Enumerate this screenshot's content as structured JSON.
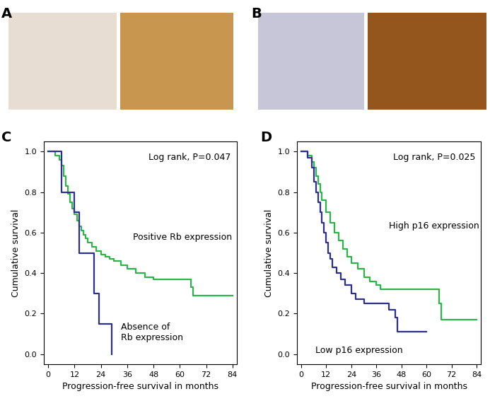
{
  "panel_labels": [
    "A",
    "B",
    "C",
    "D"
  ],
  "chart_data": [
    {
      "type": "step",
      "xlabel": "Progression-free survival in months",
      "ylabel": "Cumulative survival",
      "annotations": [
        "Log rank, P=0.047"
      ],
      "xlim": [
        -2,
        86
      ],
      "ylim": [
        -0.05,
        1.05
      ],
      "xticks": [
        0,
        12,
        24,
        36,
        48,
        60,
        72,
        84
      ],
      "yticks": [
        {
          "value": 0,
          "label": "0.0"
        },
        {
          "value": 0.2,
          "label": "0.2"
        },
        {
          "value": 0.4,
          "label": "0.4"
        },
        {
          "value": 0.6,
          "label": "0.6"
        },
        {
          "value": 0.8,
          "label": "0.8"
        },
        {
          "value": 1.0,
          "label": "1.0"
        }
      ],
      "series": [
        {
          "name": "Positive Rb expression",
          "color": "#2eb24a",
          "x": [
            0,
            3,
            5,
            6,
            7,
            8,
            9,
            10,
            11,
            12,
            13,
            14,
            15,
            16,
            17,
            18,
            20,
            22,
            24,
            26,
            28,
            30,
            33,
            36,
            40,
            44,
            48,
            54,
            60,
            65,
            66,
            84
          ],
          "values": [
            1.0,
            0.98,
            0.96,
            0.93,
            0.88,
            0.83,
            0.79,
            0.75,
            0.72,
            0.69,
            0.66,
            0.63,
            0.61,
            0.59,
            0.57,
            0.55,
            0.53,
            0.51,
            0.49,
            0.48,
            0.47,
            0.46,
            0.44,
            0.42,
            0.4,
            0.38,
            0.37,
            0.37,
            0.37,
            0.33,
            0.29,
            0.29
          ]
        },
        {
          "name": "Absence of\nRb expression",
          "color": "#2c2f8c",
          "x": [
            0,
            6,
            12,
            14,
            21,
            23,
            29
          ],
          "values": [
            1.0,
            0.8,
            0.7,
            0.5,
            0.3,
            0.15,
            0.0
          ]
        }
      ]
    },
    {
      "type": "step",
      "xlabel": "Progression-free survival in months",
      "ylabel": "Cumulative survival",
      "annotations": [
        "Log rank, P=0.025"
      ],
      "xlim": [
        -2,
        86
      ],
      "ylim": [
        -0.05,
        1.05
      ],
      "xticks": [
        0,
        12,
        24,
        36,
        48,
        60,
        72,
        84
      ],
      "yticks": [
        {
          "value": 0,
          "label": "0.0"
        },
        {
          "value": 0.2,
          "label": "0.2"
        },
        {
          "value": 0.4,
          "label": "0.4"
        },
        {
          "value": 0.6,
          "label": "0.6"
        },
        {
          "value": 0.8,
          "label": "0.8"
        },
        {
          "value": 1.0,
          "label": "1.0"
        }
      ],
      "series": [
        {
          "name": "High p16 expression",
          "color": "#2eb24a",
          "x": [
            0,
            3,
            5,
            6,
            7,
            8,
            9,
            10,
            12,
            14,
            16,
            18,
            20,
            22,
            24,
            27,
            30,
            33,
            36,
            38,
            48,
            60,
            65,
            66,
            67,
            84
          ],
          "values": [
            1.0,
            0.98,
            0.95,
            0.92,
            0.88,
            0.84,
            0.8,
            0.76,
            0.7,
            0.65,
            0.6,
            0.56,
            0.52,
            0.48,
            0.45,
            0.42,
            0.38,
            0.36,
            0.34,
            0.32,
            0.32,
            0.32,
            0.32,
            0.25,
            0.17,
            0.17
          ]
        },
        {
          "name": "Low p16 expression",
          "color": "#2c2f8c",
          "x": [
            0,
            3,
            5,
            6,
            7,
            8,
            9,
            10,
            11,
            12,
            13,
            14,
            15,
            17,
            19,
            21,
            24,
            26,
            30,
            40,
            42,
            45,
            46,
            60
          ],
          "values": [
            1.0,
            0.97,
            0.92,
            0.85,
            0.8,
            0.75,
            0.7,
            0.65,
            0.6,
            0.55,
            0.5,
            0.47,
            0.43,
            0.4,
            0.37,
            0.34,
            0.3,
            0.27,
            0.25,
            0.25,
            0.22,
            0.18,
            0.11,
            0.11
          ]
        }
      ]
    }
  ]
}
